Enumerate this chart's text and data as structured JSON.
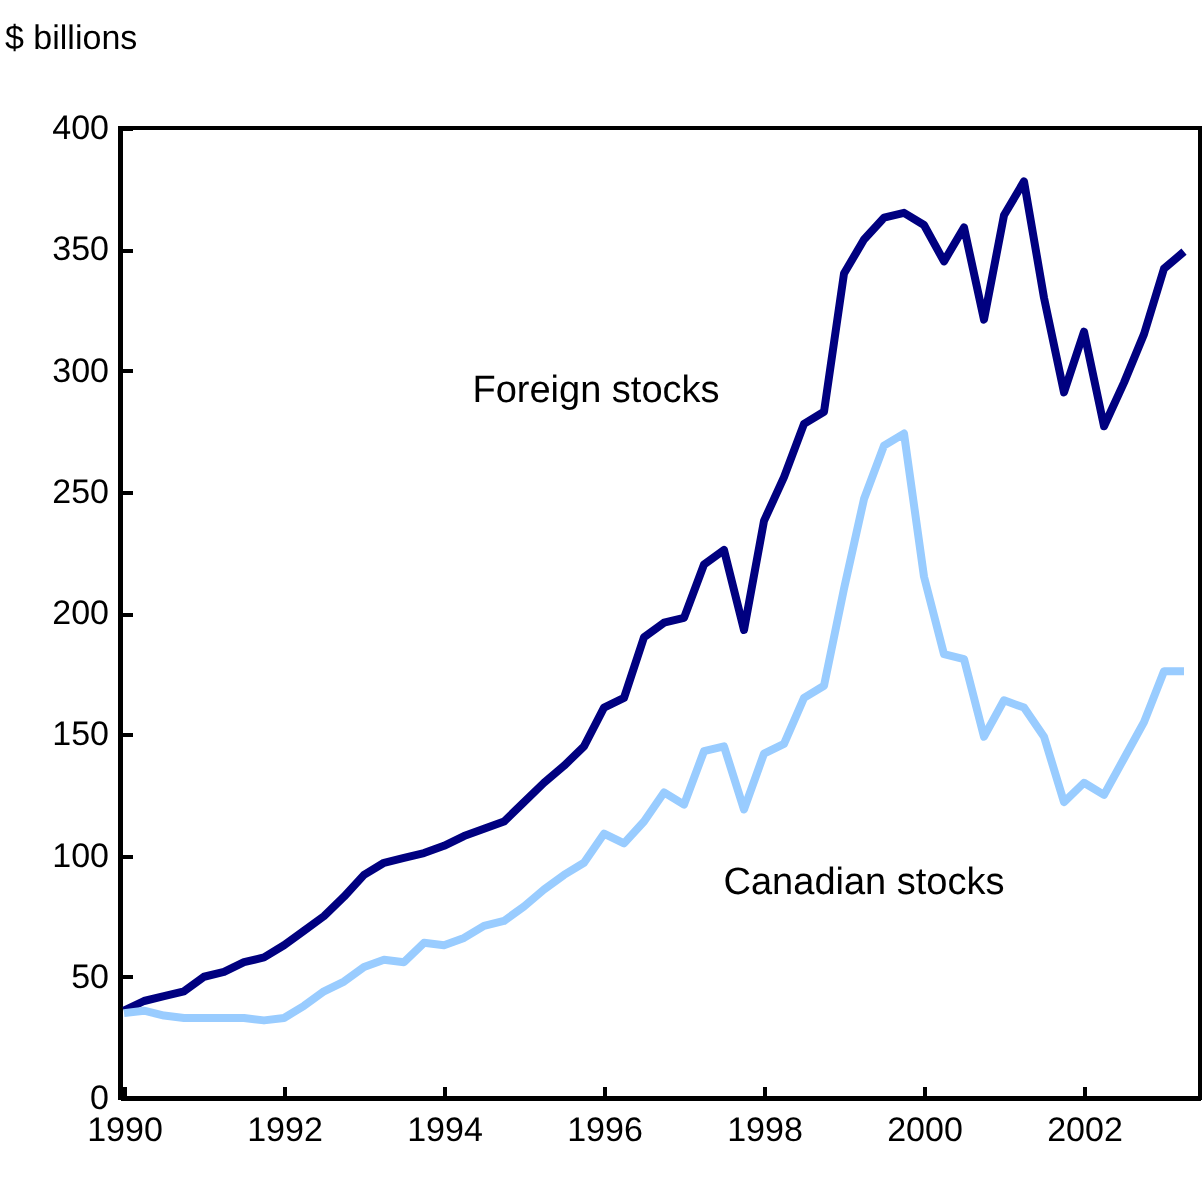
{
  "chart_data": {
    "type": "line",
    "ylabel": "$ billions",
    "x": [
      1990,
      1990.25,
      1990.5,
      1990.75,
      1991,
      1991.25,
      1991.5,
      1991.75,
      1992,
      1992.25,
      1992.5,
      1992.75,
      1993,
      1993.25,
      1993.5,
      1993.75,
      1994,
      1994.25,
      1994.5,
      1994.75,
      1995,
      1995.25,
      1995.5,
      1995.75,
      1996,
      1996.25,
      1996.5,
      1996.75,
      1997,
      1997.25,
      1997.5,
      1997.75,
      1998,
      1998.25,
      1998.5,
      1998.75,
      1999,
      1999.25,
      1999.5,
      1999.75,
      2000,
      2000.25,
      2000.5,
      2000.75,
      2001,
      2001.25,
      2001.5,
      2001.75,
      2002,
      2002.25,
      2002.5,
      2002.75,
      2003,
      2003.25
    ],
    "series": [
      {
        "name": "Foreign stocks",
        "color": "#000080",
        "values": [
          36,
          40,
          42,
          44,
          50,
          52,
          56,
          58,
          63,
          69,
          75,
          83,
          92,
          97,
          99,
          101,
          104,
          108,
          111,
          114,
          122,
          130,
          137,
          145,
          161,
          165,
          190,
          196,
          198,
          220,
          226,
          193,
          238,
          256,
          278,
          283,
          340,
          354,
          363,
          365,
          360,
          345,
          359,
          321,
          364,
          378,
          330,
          291,
          316,
          277,
          295,
          315,
          342,
          349
        ]
      },
      {
        "name": "Canadian  stocks",
        "color": "#99ccff",
        "values": [
          35,
          36,
          34,
          33,
          33,
          33,
          33,
          32,
          33,
          38,
          44,
          48,
          54,
          57,
          56,
          64,
          63,
          66,
          71,
          73,
          79,
          86,
          92,
          97,
          109,
          105,
          114,
          126,
          121,
          143,
          145,
          119,
          142,
          146,
          165,
          170,
          210,
          247,
          269,
          274,
          215,
          183,
          181,
          149,
          164,
          161,
          149,
          122,
          130,
          125,
          140,
          155,
          176,
          176
        ]
      }
    ],
    "xlim": [
      1989.95,
      2003.45
    ],
    "xticks": [
      1990,
      1992,
      1994,
      1996,
      1998,
      2000,
      2002
    ],
    "ylim": [
      0,
      400
    ],
    "yticks": [
      0,
      50,
      100,
      150,
      200,
      250,
      300,
      350,
      400
    ],
    "grid": false,
    "legend": false
  }
}
